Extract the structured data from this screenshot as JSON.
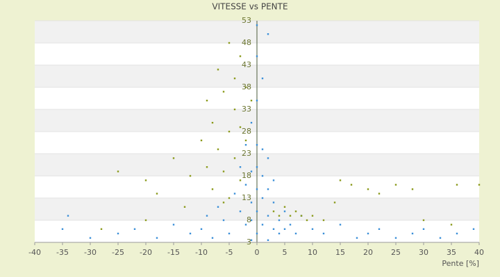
{
  "chart_data": {
    "type": "scatter",
    "title": "VITESSE vs PENTE",
    "x_label": "Pente [%]",
    "xlim": [
      -40,
      40
    ],
    "xticks": [
      -40,
      -35,
      -30,
      -25,
      -20,
      -15,
      -10,
      -5,
      0,
      5,
      10,
      15,
      20,
      25,
      30,
      35,
      40
    ],
    "ylim": [
      3,
      53
    ],
    "yticks": [
      3,
      8,
      13,
      18,
      23,
      28,
      33,
      38,
      43,
      48,
      53
    ],
    "grid": true,
    "series": [
      {
        "color": "#3a8fd8",
        "x": [
          -35,
          -30,
          -25,
          -22,
          -18,
          -15,
          -12,
          -10,
          -9,
          -8,
          -7,
          -6,
          -5,
          -4,
          -3,
          -3,
          -2,
          -2,
          -2,
          -1,
          -1,
          -1,
          -1,
          0,
          0,
          0,
          0,
          0,
          0,
          0,
          0,
          1,
          1,
          1,
          1,
          1,
          2,
          2,
          2,
          2,
          3,
          3,
          3,
          4,
          4,
          5,
          5,
          6,
          7,
          8,
          10,
          12,
          15,
          18,
          20,
          22,
          25,
          28,
          30,
          33,
          36,
          39,
          -34,
          -1,
          2
        ],
        "values": [
          6,
          4,
          5,
          6,
          4,
          7,
          5,
          6,
          9,
          4,
          11,
          8,
          5,
          14,
          10,
          20,
          7,
          16,
          25,
          12,
          19,
          30,
          8,
          5,
          10,
          15,
          20,
          25,
          35,
          45,
          52,
          7,
          13,
          18,
          24,
          40,
          9,
          15,
          22,
          50,
          6,
          12,
          17,
          8,
          5,
          10,
          6,
          7,
          5,
          9,
          6,
          5,
          7,
          4,
          5,
          6,
          4,
          5,
          6,
          4,
          5,
          6,
          9,
          3.5,
          3.5
        ]
      },
      {
        "color": "#8a9a1a",
        "x": [
          -25,
          -20,
          -18,
          -15,
          -13,
          -12,
          -10,
          -9,
          -9,
          -8,
          -8,
          -7,
          -7,
          -6,
          -6,
          -5,
          -5,
          -5,
          -4,
          -4,
          -4,
          -3,
          -3,
          -3,
          -2,
          -2,
          -1,
          -6,
          3,
          4,
          5,
          6,
          7,
          8,
          9,
          10,
          12,
          14,
          15,
          17,
          20,
          22,
          25,
          28,
          30,
          35,
          36,
          40,
          -28,
          -20
        ],
        "values": [
          19,
          17,
          14,
          22,
          11,
          18,
          26,
          20,
          35,
          15,
          30,
          42,
          24,
          37,
          19,
          48,
          28,
          13,
          40,
          33,
          22,
          45,
          29,
          17,
          38,
          26,
          35,
          12,
          10,
          9,
          11,
          9,
          10,
          9,
          8,
          9,
          8,
          12,
          17,
          16,
          15,
          14,
          16,
          15,
          8,
          7,
          16,
          16,
          6,
          8
        ]
      }
    ]
  }
}
